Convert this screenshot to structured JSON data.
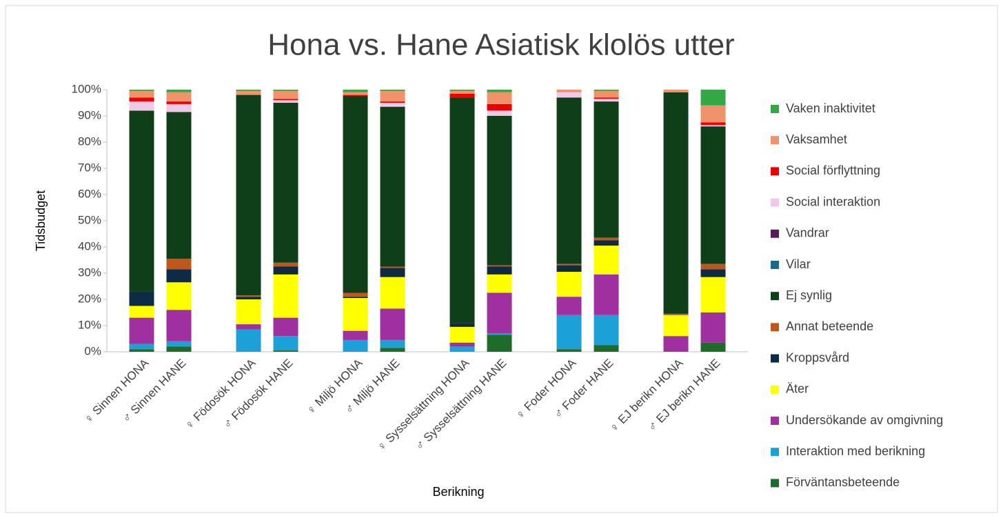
{
  "chart_data": {
    "type": "stacked_bar",
    "title": "Hona vs. Hane Asiatisk klolös utter",
    "x_label": "Berikning",
    "y_label": "Tidsbudget",
    "categories": [
      "♀ Sinnen HONA",
      "♂ Sinnen HANE",
      "♀ Födosök HONA",
      "♂ Födosök HANE",
      "♀ Miljö HONA",
      "♂ Miljö HANE",
      "♀ Sysselsättning HONA",
      "♂ Sysselsättning HANE",
      "♀ Foder HONA",
      "♂ Foder HANE",
      "♀ EJ berikn HONA",
      "♂ EJ berikn HANE"
    ],
    "ylim": [
      0,
      100
    ],
    "yticks": [
      {
        "value": 0,
        "label": "0%"
      },
      {
        "value": 10,
        "label": "10%"
      },
      {
        "value": 20,
        "label": "20%"
      },
      {
        "value": 30,
        "label": "30%"
      },
      {
        "value": 40,
        "label": "40%"
      },
      {
        "value": 50,
        "label": "50%"
      },
      {
        "value": 60,
        "label": "60%"
      },
      {
        "value": 70,
        "label": "70%"
      },
      {
        "value": 80,
        "label": "80%"
      },
      {
        "value": 90,
        "label": "90%"
      },
      {
        "value": 100,
        "label": "100%"
      }
    ],
    "legend_position": "right",
    "series": [
      {
        "name": "Vaken inaktivitet",
        "color": "#33a845",
        "values": [
          0.5,
          1,
          0.5,
          0.5,
          1,
          0.5,
          0.5,
          1,
          0,
          0.5,
          0,
          6
        ]
      },
      {
        "name": "Vaksamhet",
        "color": "#f0926a",
        "values": [
          2.5,
          3.5,
          1.5,
          3,
          1,
          4,
          1,
          4.5,
          1,
          2.5,
          1,
          6.5
        ]
      },
      {
        "name": "Social förflyttning",
        "color": "#ee0000",
        "values": [
          1.5,
          1,
          0,
          0.5,
          0.5,
          0.5,
          1.5,
          2.5,
          0,
          0.5,
          0,
          1
        ]
      },
      {
        "name": "Social interaktion",
        "color": "#f0c8e8",
        "values": [
          3.5,
          3,
          0,
          1,
          0,
          1.5,
          0,
          2,
          2,
          1,
          0,
          0.5
        ]
      },
      {
        "name": "Vandrar",
        "color": "#5a1a5a",
        "values": [
          0,
          0,
          0,
          0,
          0,
          0,
          0,
          0,
          0,
          0,
          0,
          0
        ]
      },
      {
        "name": "Vilar",
        "color": "#1a6a8a",
        "values": [
          0,
          0,
          0,
          0,
          0,
          0,
          0,
          0,
          0,
          0,
          0,
          0
        ]
      },
      {
        "name": "Ej synlig",
        "color": "#0f3f18",
        "values": [
          69,
          56,
          76.5,
          61,
          75,
          61,
          86,
          57,
          63.5,
          52,
          84.5,
          52.5
        ]
      },
      {
        "name": "Annat beteende",
        "color": "#c0561a",
        "values": [
          0,
          4,
          0.5,
          1.5,
          1.5,
          0.5,
          0,
          0.5,
          0.5,
          1,
          0.5,
          2
        ]
      },
      {
        "name": "Kroppsvård",
        "color": "#0d2b45",
        "values": [
          5.5,
          5,
          1,
          3,
          0.5,
          3.5,
          1.5,
          3,
          2.5,
          2,
          0,
          3
        ]
      },
      {
        "name": "Äter",
        "color": "#ffff00",
        "values": [
          4.5,
          10.5,
          9.5,
          16.5,
          12.5,
          12,
          6,
          7,
          9.5,
          11,
          8,
          13.5
        ]
      },
      {
        "name": "Undersökande av omgivning",
        "color": "#a0309f",
        "values": [
          10,
          12,
          2,
          7,
          3.5,
          12,
          1.5,
          15.5,
          7,
          15.5,
          6,
          11.5
        ]
      },
      {
        "name": "Interaktion med berikning",
        "color": "#1ba0d8",
        "values": [
          2,
          2,
          8.5,
          5.5,
          4.5,
          3,
          2,
          0.5,
          13,
          11.5,
          0,
          0
        ]
      },
      {
        "name": "Förväntansbeteende",
        "color": "#1e6b2a",
        "values": [
          1,
          2,
          0,
          0.5,
          0,
          1.5,
          0,
          6.5,
          1,
          2.5,
          0,
          3.5
        ]
      }
    ]
  }
}
